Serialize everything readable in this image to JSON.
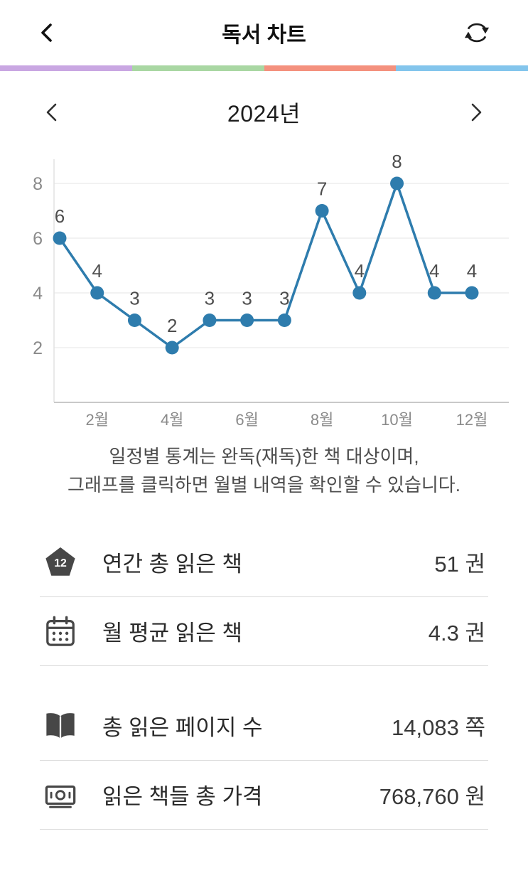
{
  "header": {
    "title": "독서 차트"
  },
  "accent_bar": {
    "colors": [
      "#c9a7e2",
      "#a9d7a3",
      "#f4917e",
      "#83c5ec"
    ]
  },
  "year_selector": {
    "year": "2024년"
  },
  "chart_data": {
    "type": "line",
    "x": [
      "1월",
      "2월",
      "3월",
      "4월",
      "5월",
      "6월",
      "7월",
      "8월",
      "9월",
      "10월",
      "11월",
      "12월"
    ],
    "values": [
      6,
      4,
      3,
      2,
      3,
      3,
      3,
      7,
      4,
      8,
      4,
      4
    ],
    "y_ticks": [
      2,
      4,
      6,
      8
    ],
    "ylim": [
      0,
      9
    ],
    "x_tick_labels_shown": [
      "2월",
      "4월",
      "6월",
      "8월",
      "10월",
      "12월"
    ],
    "line_color": "#2e7cad",
    "grid": true,
    "point_labels": true,
    "legend": "none"
  },
  "note": {
    "line1": "일정별 통계는 완독(재독)한 책 대상이며,",
    "line2": "그래프를 클릭하면 월별 내역을 확인할 수 있습니다."
  },
  "stats": [
    {
      "icon": "pentagon-badge-icon",
      "badge": "12",
      "label": "연간 총 읽은 책",
      "value": "51 권"
    },
    {
      "icon": "calendar-icon",
      "label": "월 평균 읽은 책",
      "value": "4.3 권"
    },
    {
      "icon": "open-book-icon",
      "label": "총 읽은 페이지 수",
      "value": "14,083 쪽"
    },
    {
      "icon": "money-icon",
      "label": "읽은 책들 총 가격",
      "value": "768,760 원"
    }
  ]
}
